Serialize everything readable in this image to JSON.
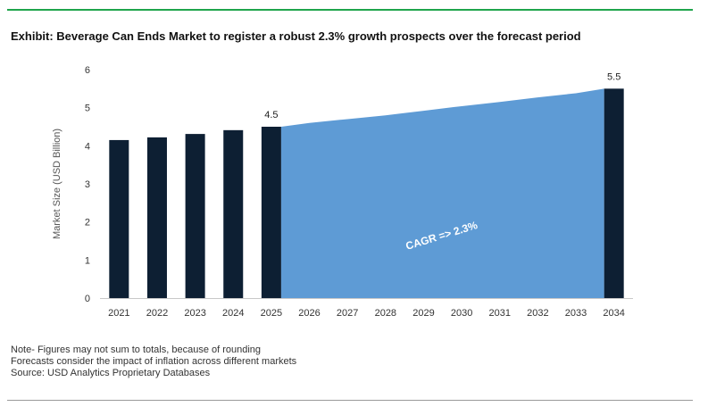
{
  "header": {
    "title": "Exhibit: Beverage Can Ends Market to register a robust 2.3% growth prospects over the forecast period"
  },
  "notes": [
    "Note- Figures may not sum to totals, because of rounding",
    "Forecasts consider the impact of inflation across different markets",
    "Source: USD Analytics Proprietary Databases"
  ],
  "colors": {
    "bar": "#0d1f33",
    "area": "#5e9bd5",
    "accent_rule": "#1fa44b"
  },
  "chart_data": {
    "type": "bar",
    "title": "",
    "xlabel": "",
    "ylabel": "Market Size (USD Billion)",
    "ylim": [
      0,
      6
    ],
    "yticks": [
      "0",
      "1",
      "2",
      "3",
      "4",
      "5",
      "6"
    ],
    "categories": [
      "2021",
      "2022",
      "2023",
      "2024",
      "2025",
      "2026",
      "2027",
      "2028",
      "2029",
      "2030",
      "2031",
      "2032",
      "2033",
      "2034"
    ],
    "bars": [
      {
        "category": "2021",
        "value": 4.15
      },
      {
        "category": "2022",
        "value": 4.22
      },
      {
        "category": "2023",
        "value": 4.31
      },
      {
        "category": "2024",
        "value": 4.41
      },
      {
        "category": "2025",
        "value": 4.5,
        "label": "4.5"
      },
      {
        "category": "2034",
        "value": 5.5,
        "label": "5.5"
      }
    ],
    "forecast_area": {
      "x": [
        "2025",
        "2026",
        "2027",
        "2028",
        "2029",
        "2030",
        "2031",
        "2032",
        "2033",
        "2034"
      ],
      "values": [
        4.5,
        4.6,
        4.7,
        4.8,
        4.92,
        5.04,
        5.15,
        5.27,
        5.38,
        5.5
      ]
    },
    "annotation": "CAGR => 2.3%"
  }
}
